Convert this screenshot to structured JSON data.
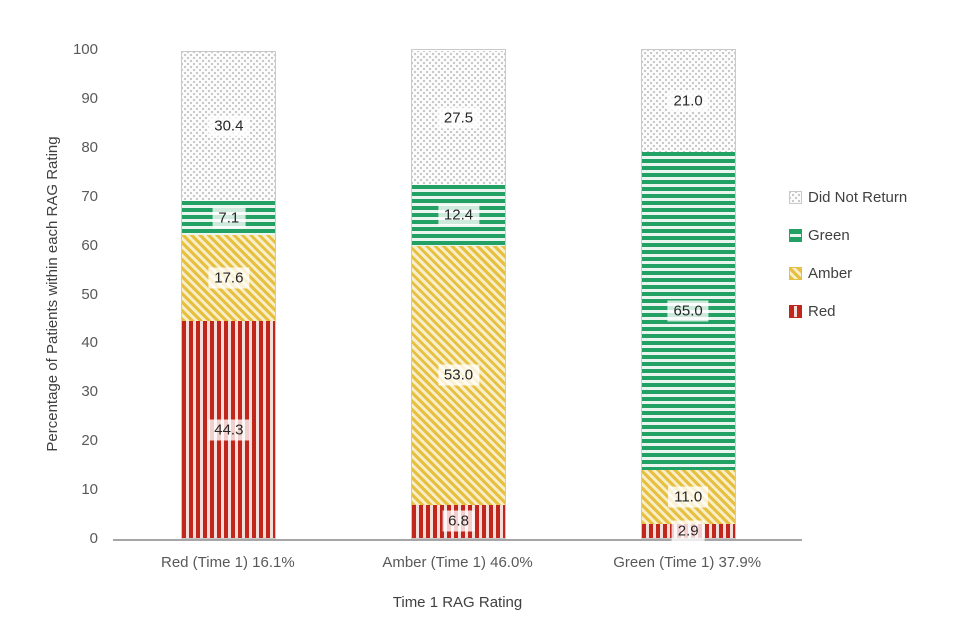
{
  "chart_data": {
    "type": "bar",
    "stacked": true,
    "xlabel": "Time 1 RAG Rating",
    "ylabel": "Percentage of Patients within each RAG Rating",
    "ylim": [
      0,
      100
    ],
    "ytick_step": 10,
    "grid": false,
    "legend_position": "right",
    "legend_order": [
      "Did Not Return",
      "Green",
      "Amber",
      "Red"
    ],
    "categories": [
      "Red (Time 1) 16.1%",
      "Amber (Time 1) 46.0%",
      "Green (Time 1) 37.9%"
    ],
    "series": [
      {
        "name": "Red",
        "pattern": "vertical-stripes",
        "color": "#c1261c",
        "tint": "#f5ddd9",
        "values": [
          44.3,
          6.8,
          2.9
        ]
      },
      {
        "name": "Amber",
        "pattern": "diagonal-stripes",
        "color": "#e7bf41",
        "tint": "#f8efc8",
        "values": [
          17.6,
          53.0,
          11.0
        ]
      },
      {
        "name": "Green",
        "pattern": "horizontal-stripes",
        "color": "#23a164",
        "tint": "#e9f5ee",
        "values": [
          7.1,
          12.4,
          65.0
        ]
      },
      {
        "name": "Did Not Return",
        "pattern": "dotted-grid",
        "color": "#c9c9c9",
        "tint": "#fdfdfd",
        "values": [
          30.4,
          27.5,
          21.0
        ]
      }
    ],
    "colors": {
      "axis_line": "#a6a6a6",
      "tick_text": "#595959",
      "axis_title_text": "#404040",
      "data_label_text": "#262626",
      "data_label_bg": "rgba(255,255,255,0.78)",
      "bar_border": "#c9c9c9",
      "background": "#ffffff"
    }
  }
}
